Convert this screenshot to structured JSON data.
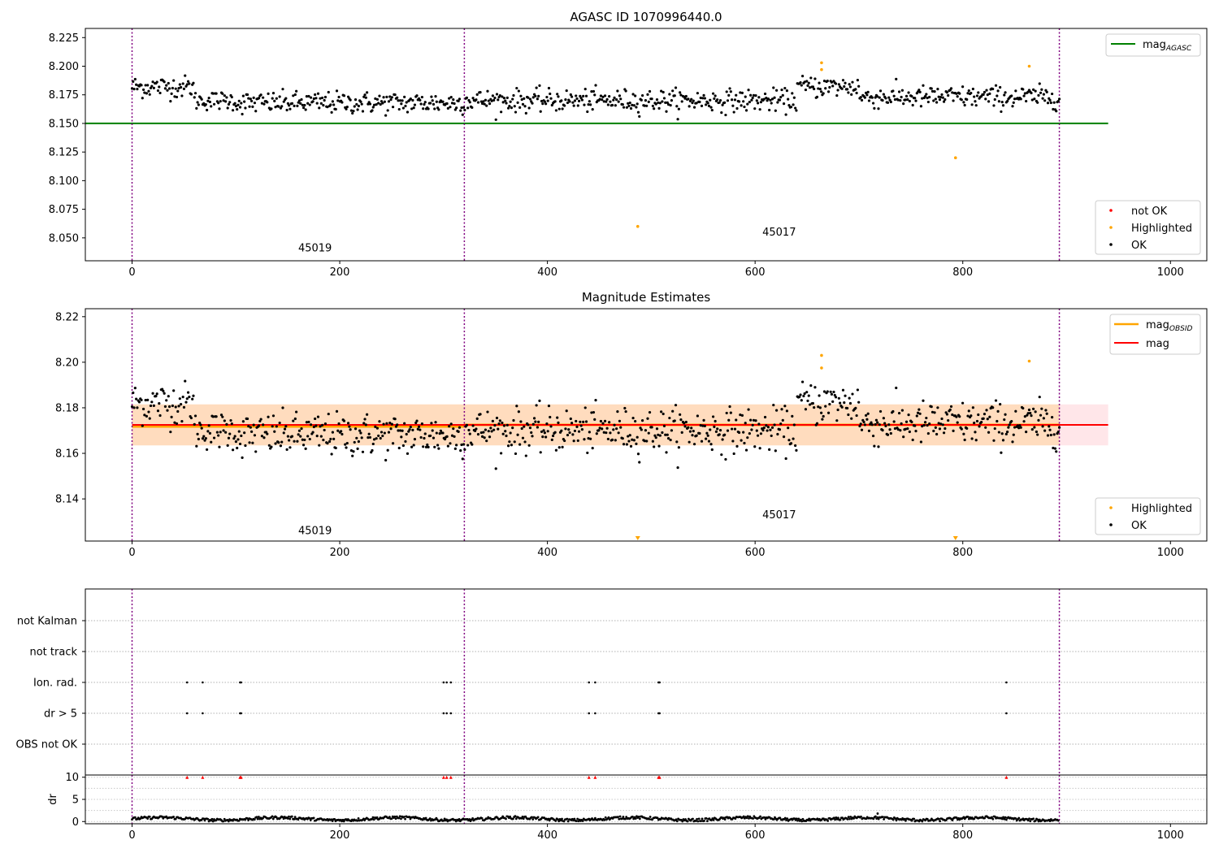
{
  "chart_data": [
    {
      "type": "scatter",
      "title": "AGASC ID 1070996440.0",
      "xlim": [
        -45,
        1035
      ],
      "ylim": [
        8.03,
        8.233
      ],
      "xticks": [
        "0",
        "200",
        "400",
        "600",
        "800",
        "1000"
      ],
      "yticks": [
        "8.050",
        "8.075",
        "8.100",
        "8.125",
        "8.150",
        "8.175",
        "8.200",
        "8.225"
      ],
      "obsid_boundaries": [
        0,
        320,
        893
      ],
      "obsid_labels": [
        {
          "text": "45019",
          "x": 160,
          "y": 8.038
        },
        {
          "text": "45017",
          "x": 607,
          "y": 8.052
        }
      ],
      "reference_lines": [
        {
          "name": "mag_AGASC",
          "value": 8.15,
          "x_range": [
            -45,
            940
          ],
          "color": "#008000"
        }
      ],
      "legend_top": [
        {
          "label": "mag",
          "sub": "AGASC",
          "color": "#008000",
          "kind": "line"
        }
      ],
      "legend_bottom": [
        {
          "label": "not OK",
          "color": "#ff0000",
          "kind": "dot"
        },
        {
          "label": "Highlighted",
          "color": "#ffa500",
          "kind": "dot"
        },
        {
          "label": "OK",
          "color": "#000000",
          "kind": "dot"
        }
      ],
      "highlighted_points": [
        {
          "x": 487,
          "y": 8.06
        },
        {
          "x": 793,
          "y": 8.12
        },
        {
          "x": 664,
          "y": 8.203
        },
        {
          "x": 664,
          "y": 8.197
        },
        {
          "x": 864,
          "y": 8.2
        }
      ],
      "ok_series_profile": {
        "x_start": 0,
        "x_end": 893,
        "count": 893,
        "segments": [
          {
            "x": [
              0,
              60
            ],
            "y_center": 8.182,
            "spread": 0.008
          },
          {
            "x": [
              60,
              100
            ],
            "y_center": 8.17,
            "spread": 0.007
          },
          {
            "x": [
              100,
              320
            ],
            "y_center": 8.168,
            "spread": 0.008
          },
          {
            "x": [
              320,
              440
            ],
            "y_center": 8.17,
            "spread": 0.008
          },
          {
            "x": [
              440,
              640
            ],
            "y_center": 8.17,
            "spread": 0.008
          },
          {
            "x": [
              640,
              700
            ],
            "y_center": 8.182,
            "spread": 0.008
          },
          {
            "x": [
              700,
              893
            ],
            "y_center": 8.173,
            "spread": 0.008
          }
        ]
      }
    },
    {
      "type": "scatter",
      "title": "Magnitude Estimates",
      "xlim": [
        -45,
        1035
      ],
      "ylim": [
        8.1215,
        8.2235
      ],
      "xticks": [
        "0",
        "200",
        "400",
        "600",
        "800",
        "1000"
      ],
      "yticks": [
        "8.14",
        "8.16",
        "8.18",
        "8.20",
        "8.22"
      ],
      "obsid_boundaries": [
        0,
        320,
        893
      ],
      "obsid_labels": [
        {
          "text": "45019",
          "x": 160,
          "y": 8.1245
        },
        {
          "text": "45017",
          "x": 607,
          "y": 8.1315
        }
      ],
      "bands": [
        {
          "name": "mag",
          "x_range": [
            0,
            940
          ],
          "y_range": [
            8.1635,
            8.1815
          ],
          "color": "#ffb6c1"
        },
        {
          "name": "obsid 45019",
          "x_range": [
            0,
            320
          ],
          "y_range": [
            8.1635,
            8.1815
          ],
          "color": "#ffc870"
        },
        {
          "name": "obsid 45017",
          "x_range": [
            320,
            893
          ],
          "y_range": [
            8.1635,
            8.1815
          ],
          "color": "#ffc870"
        }
      ],
      "reference_lines": [
        {
          "name": "mag_OBSID 45019",
          "value": 8.1718,
          "x_range": [
            0,
            320
          ],
          "color": "#ffa500"
        },
        {
          "name": "mag_OBSID 45017",
          "value": 8.1725,
          "x_range": [
            320,
            893
          ],
          "color": "#ffa500"
        },
        {
          "name": "mag",
          "value": 8.1725,
          "x_range": [
            0,
            940
          ],
          "color": "#ff0000"
        }
      ],
      "legend_top": [
        {
          "label": "mag",
          "sub": "OBSID",
          "color": "#ffa500",
          "kind": "line"
        },
        {
          "label": "mag",
          "sub": "",
          "color": "#ff0000",
          "kind": "line"
        }
      ],
      "legend_bottom": [
        {
          "label": "Highlighted",
          "color": "#ffa500",
          "kind": "dot"
        },
        {
          "label": "OK",
          "color": "#000000",
          "kind": "dot"
        }
      ],
      "highlighted_points": [
        {
          "x": 664,
          "y": 8.203
        },
        {
          "x": 664,
          "y": 8.1975
        },
        {
          "x": 864,
          "y": 8.2005
        }
      ],
      "offscale_markers": [
        {
          "x": 487
        },
        {
          "x": 793
        }
      ]
    },
    {
      "type": "scatter",
      "title": "",
      "xlim": [
        -45,
        1035
      ],
      "flag_rows": [
        "not Kalman",
        "not track",
        "Ion. rad.",
        "dr > 5",
        "OBS not OK"
      ],
      "obsid_boundaries": [
        0,
        320,
        893
      ],
      "flag_points": {
        "Ion. rad.": [
          53,
          68,
          104,
          105,
          300,
          303,
          307,
          440,
          446,
          507,
          508,
          842
        ],
        "dr > 5": [
          53,
          68,
          104,
          105,
          300,
          303,
          307,
          440,
          446,
          507,
          508,
          842
        ]
      },
      "xticks": [
        "0",
        "200",
        "400",
        "600",
        "800",
        "1000"
      ]
    },
    {
      "type": "scatter",
      "title": "",
      "ylabel": "dr",
      "xlim": [
        -45,
        1035
      ],
      "ylim": [
        -0.5,
        10.5
      ],
      "yticks": [
        "0",
        "5",
        "10"
      ],
      "xticks": [
        "0",
        "200",
        "400",
        "600",
        "800",
        "1000"
      ],
      "obsid_boundaries": [
        0,
        320,
        893
      ],
      "capped_points": [
        53,
        68,
        104,
        105,
        300,
        303,
        307,
        440,
        446,
        507,
        508,
        842
      ],
      "cap_value": 10,
      "outlier_points": [
        {
          "x": 718,
          "y": 1.8
        }
      ],
      "baseline": {
        "y_center": 0.6,
        "spread": 0.45
      }
    }
  ]
}
